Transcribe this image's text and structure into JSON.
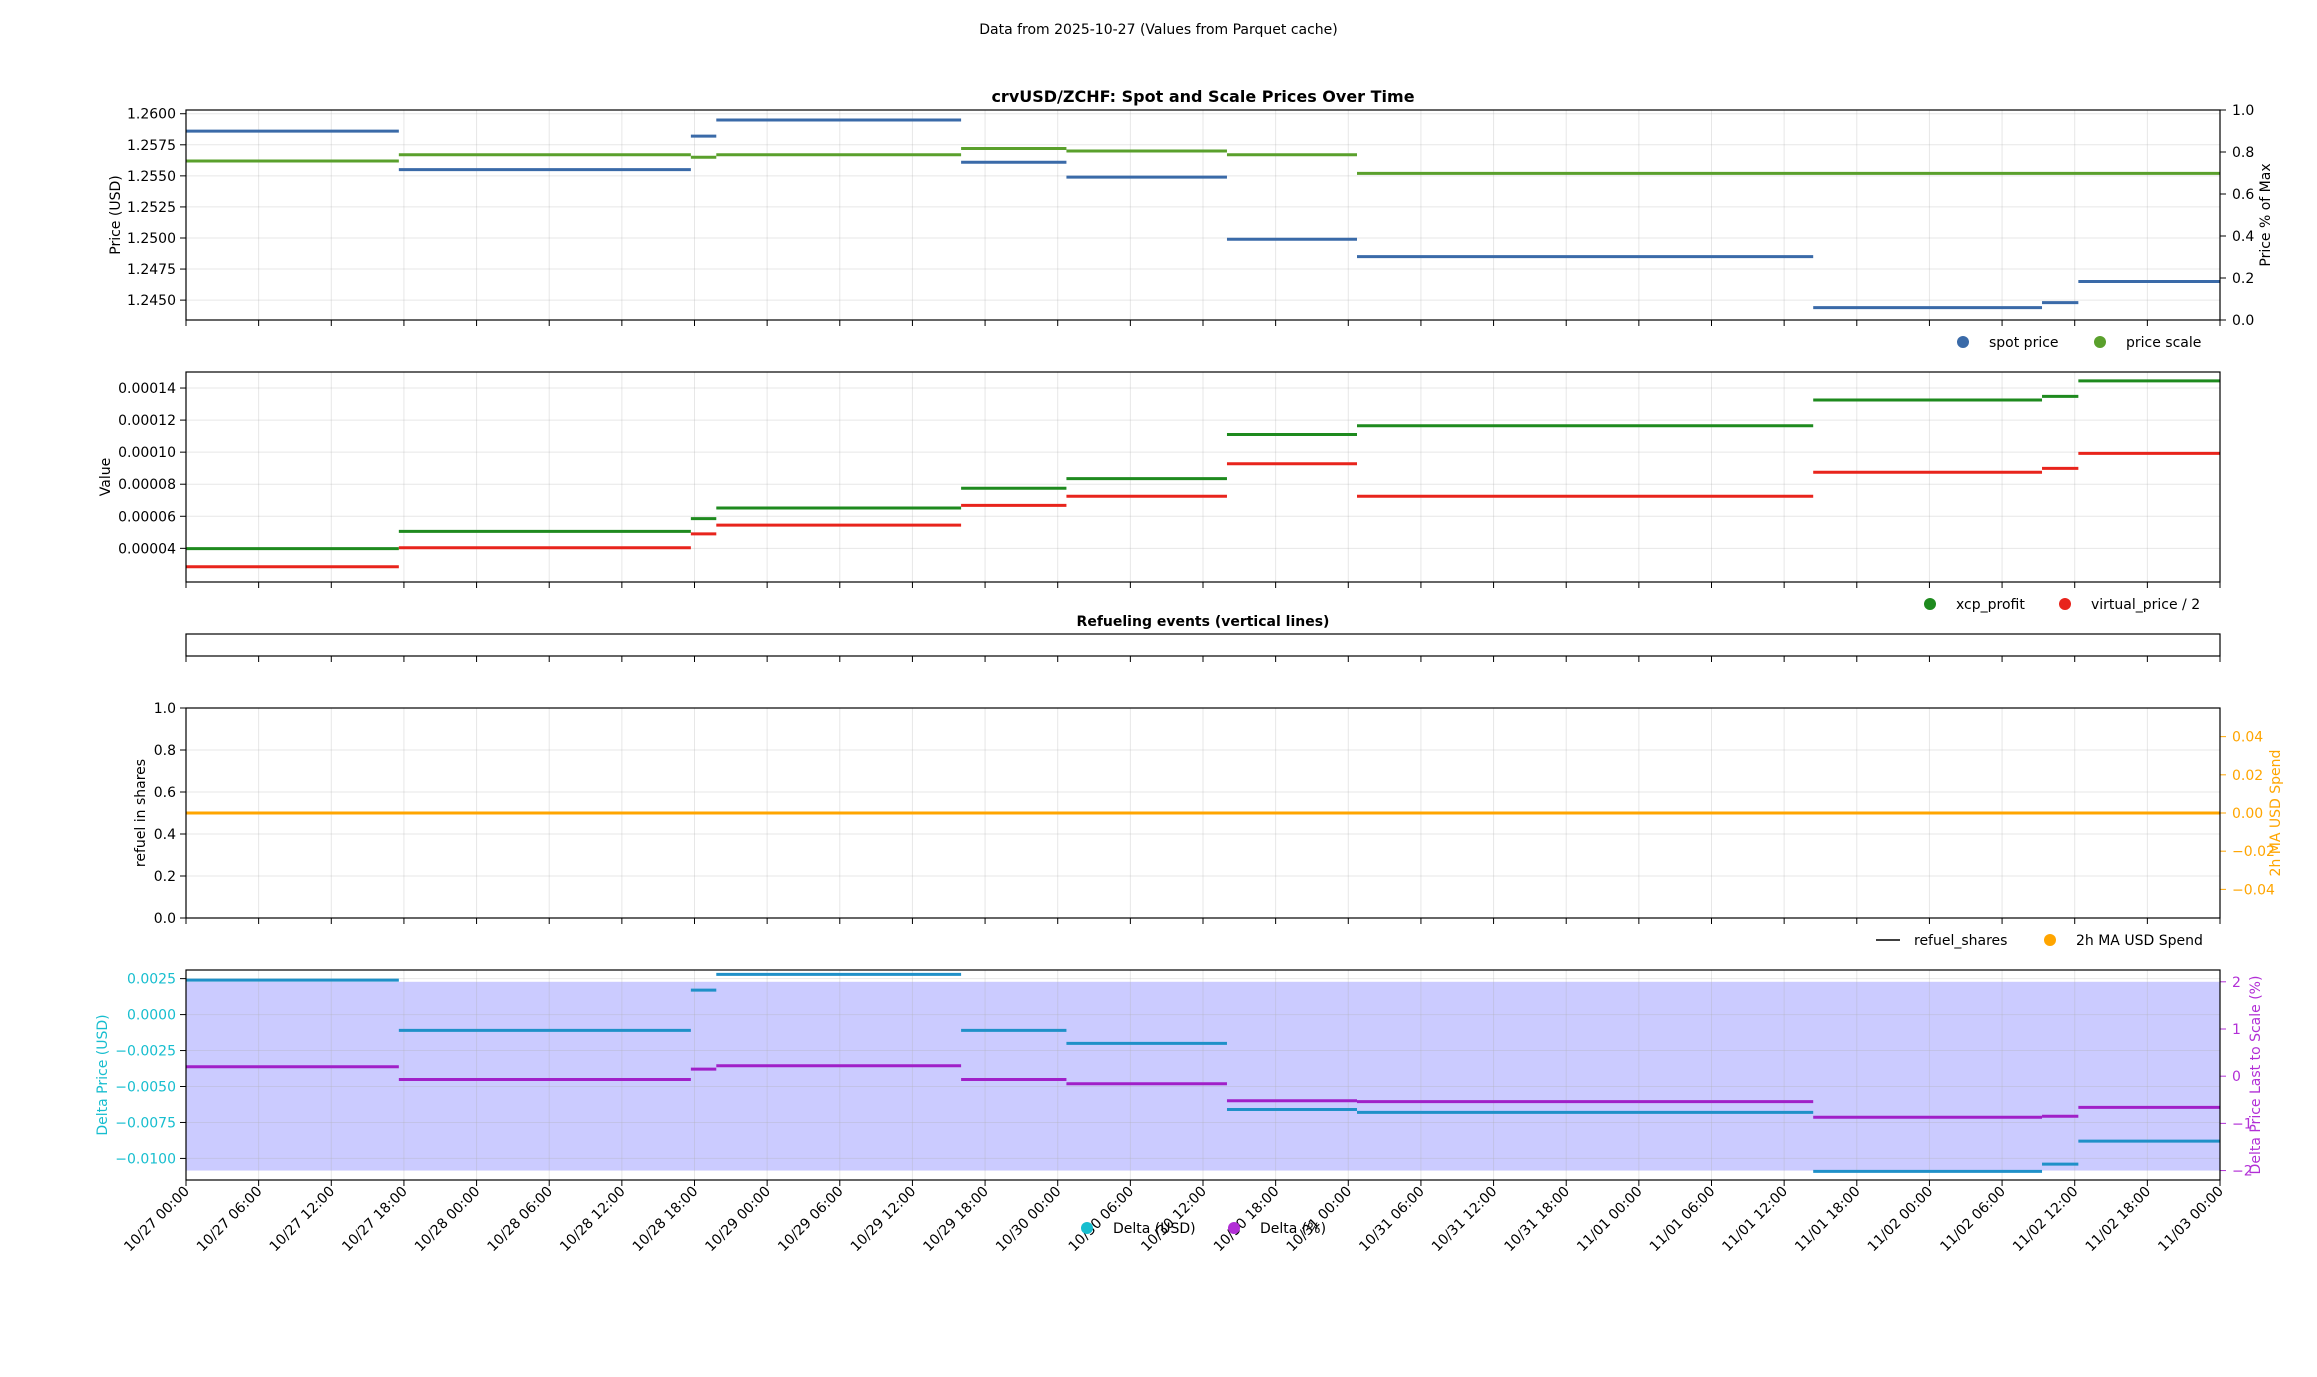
{
  "suptitle": "Data from 2025-10-27 (Values from Parquet cache)",
  "x_ticks": [
    "10/27 00:00",
    "10/27 06:00",
    "10/27 12:00",
    "10/27 18:00",
    "10/28 00:00",
    "10/28 06:00",
    "10/28 12:00",
    "10/28 18:00",
    "10/29 00:00",
    "10/29 06:00",
    "10/29 12:00",
    "10/29 18:00",
    "10/30 00:00",
    "10/30 06:00",
    "10/30 12:00",
    "10/30 18:00",
    "10/31 00:00",
    "10/31 06:00",
    "10/31 12:00",
    "10/31 18:00",
    "11/01 00:00",
    "11/01 06:00",
    "11/01 12:00",
    "11/01 18:00",
    "11/02 00:00",
    "11/02 06:00",
    "11/02 12:00",
    "11/02 18:00",
    "11/03 00:00"
  ],
  "colors": {
    "spot": "#3a6aa8",
    "scale": "#5aa02c",
    "xcp": "#1e8a1e",
    "virtual": "#e8241c",
    "refuel": "#000000",
    "ma": "#ffa500",
    "delta_usd": "#1f90c8",
    "delta_pct": "#a020c8",
    "delta_axis_left": "#17becf",
    "delta_axis_right": "#b22fd6",
    "shade": "#c8c8ff"
  },
  "chart_data": [
    {
      "type": "line",
      "title": "crvUSD/ZCHF: Spot and Scale Prices Over Time",
      "ylabel": "Price (USD)",
      "ylabel_right": "Price % of Max",
      "ylim": [
        1.2434,
        1.2603
      ],
      "ylim_right": [
        0.0,
        1.0
      ],
      "yticks": [
        "1.2450",
        "1.2475",
        "1.2500",
        "1.2525",
        "1.2550",
        "1.2575",
        "1.2600"
      ],
      "yticks_right": [
        "0.0",
        "0.2",
        "0.4",
        "0.6",
        "0.8",
        "1.0"
      ],
      "legend": [
        "spot price",
        "price scale"
      ],
      "legend_placement": "below-right",
      "grid": true,
      "series": [
        {
          "name": "spot price",
          "color_key": "spot",
          "axis": "left",
          "segments": [
            [
              0,
              2.93,
              1.2586
            ],
            [
              2.93,
              6.95,
              1.2555
            ],
            [
              6.95,
              7.3,
              1.2582
            ],
            [
              7.3,
              10.67,
              1.2595
            ],
            [
              10.67,
              12.12,
              1.2561
            ],
            [
              12.12,
              14.33,
              1.2549
            ],
            [
              14.33,
              16.12,
              1.2499
            ],
            [
              16.12,
              22.4,
              1.2485
            ],
            [
              22.4,
              25.55,
              1.2444
            ],
            [
              25.55,
              26.05,
              1.2448
            ],
            [
              26.05,
              28.0,
              1.2465
            ]
          ]
        },
        {
          "name": "price scale",
          "color_key": "scale",
          "axis": "left",
          "segments": [
            [
              0,
              2.93,
              1.2562
            ],
            [
              2.93,
              6.95,
              1.2567
            ],
            [
              6.95,
              7.3,
              1.2565
            ],
            [
              7.3,
              10.67,
              1.2567
            ],
            [
              10.67,
              12.12,
              1.2572
            ],
            [
              12.12,
              14.33,
              1.257
            ],
            [
              14.33,
              16.12,
              1.2567
            ],
            [
              16.12,
              28.0,
              1.2552
            ]
          ]
        }
      ]
    },
    {
      "type": "line",
      "ylabel": "Value",
      "ylim": [
        1.9e-05,
        0.00015
      ],
      "yticks": [
        "0.00004",
        "0.00006",
        "0.00008",
        "0.00010",
        "0.00012",
        "0.00014"
      ],
      "legend": [
        "xcp_profit",
        "virtual_price / 2"
      ],
      "legend_placement": "below-right",
      "grid": true,
      "series": [
        {
          "name": "xcp_profit",
          "color_key": "xcp",
          "segments": [
            [
              0,
              2.93,
              3.98e-05
            ],
            [
              2.93,
              6.95,
              5.06e-05
            ],
            [
              6.95,
              7.3,
              5.85e-05
            ],
            [
              7.3,
              10.67,
              6.52e-05
            ],
            [
              10.67,
              12.12,
              7.75e-05
            ],
            [
              12.12,
              14.33,
              8.35e-05
            ],
            [
              14.33,
              16.12,
              0.000111
            ],
            [
              16.12,
              22.4,
              0.0001165
            ],
            [
              22.4,
              25.55,
              0.0001325
            ],
            [
              25.55,
              26.05,
              0.0001348
            ],
            [
              26.05,
              28.0,
              0.0001445
            ]
          ]
        },
        {
          "name": "virtual_price / 2",
          "color_key": "virtual",
          "segments": [
            [
              0,
              2.93,
              2.85e-05
            ],
            [
              2.93,
              6.95,
              4.04e-05
            ],
            [
              6.95,
              7.3,
              4.9e-05
            ],
            [
              7.3,
              10.67,
              5.45e-05
            ],
            [
              10.67,
              12.12,
              6.68e-05
            ],
            [
              12.12,
              14.33,
              7.25e-05
            ],
            [
              14.33,
              16.12,
              9.28e-05
            ],
            [
              16.12,
              22.4,
              7.25e-05
            ],
            [
              22.4,
              25.55,
              8.75e-05
            ],
            [
              25.55,
              26.05,
              8.99e-05
            ],
            [
              26.05,
              28.0,
              9.92e-05
            ]
          ]
        }
      ]
    },
    {
      "type": "line",
      "title": "Refueling events (vertical lines)",
      "series": []
    },
    {
      "type": "line",
      "ylabel": "refuel in shares",
      "ylabel_right": "2h MA USD Spend",
      "ylim": [
        0.0,
        1.0
      ],
      "ylim_right": [
        -0.055,
        0.055
      ],
      "yticks": [
        "0.0",
        "0.2",
        "0.4",
        "0.6",
        "0.8",
        "1.0"
      ],
      "yticks_right": [
        "−0.04",
        "−0.02",
        "0.00",
        "0.02",
        "0.04"
      ],
      "legend": [
        "refuel_shares",
        "2h MA USD Spend"
      ],
      "legend_placement": "below-right",
      "grid": true,
      "series": [
        {
          "name": "refuel_shares",
          "color_key": "refuel",
          "segments": []
        },
        {
          "name": "2h MA USD Spend",
          "color_key": "ma",
          "axis": "right",
          "segments": [
            [
              0,
              28.0,
              0.0
            ]
          ]
        }
      ]
    },
    {
      "type": "area",
      "ylabel": "Delta Price (USD)",
      "ylabel_right": "Delta Price Last to Scale (%)",
      "ylim": [
        -0.0115,
        0.0031
      ],
      "ylim_right": [
        -2.2,
        2.25
      ],
      "yticks": [
        "−0.0100",
        "−0.0075",
        "−0.0050",
        "−0.0025",
        "0.0000",
        "0.0025"
      ],
      "yticks_right": [
        "−2",
        "−1",
        "0",
        "1",
        "2"
      ],
      "shaded_band_right": [
        -2.0,
        2.0
      ],
      "legend": [
        "Delta (USD)",
        "Delta (%)"
      ],
      "legend_placement": "below-center",
      "grid": true,
      "series": [
        {
          "name": "Delta (USD)",
          "color_key": "delta_usd",
          "axis": "left",
          "segments": [
            [
              0,
              2.93,
              0.0024
            ],
            [
              2.93,
              6.95,
              -0.0011
            ],
            [
              6.95,
              7.3,
              0.0017
            ],
            [
              7.3,
              10.67,
              0.0028
            ],
            [
              10.67,
              12.12,
              -0.0011
            ],
            [
              12.12,
              14.33,
              -0.002
            ],
            [
              14.33,
              16.12,
              -0.0066
            ],
            [
              16.12,
              22.4,
              -0.0068
            ],
            [
              22.4,
              25.55,
              -0.0109
            ],
            [
              25.55,
              26.05,
              -0.0104
            ],
            [
              26.05,
              28.0,
              -0.0088
            ]
          ]
        },
        {
          "name": "Delta (%)",
          "color_key": "delta_pct",
          "axis": "right",
          "segments": [
            [
              0,
              2.93,
              0.2
            ],
            [
              2.93,
              6.95,
              -0.07
            ],
            [
              6.95,
              7.3,
              0.15
            ],
            [
              7.3,
              10.67,
              0.22
            ],
            [
              10.67,
              12.12,
              -0.07
            ],
            [
              12.12,
              14.33,
              -0.16
            ],
            [
              14.33,
              16.12,
              -0.52
            ],
            [
              16.12,
              22.4,
              -0.54
            ],
            [
              22.4,
              25.55,
              -0.87
            ],
            [
              25.55,
              26.05,
              -0.85
            ],
            [
              26.05,
              28.0,
              -0.66
            ]
          ]
        }
      ]
    }
  ]
}
